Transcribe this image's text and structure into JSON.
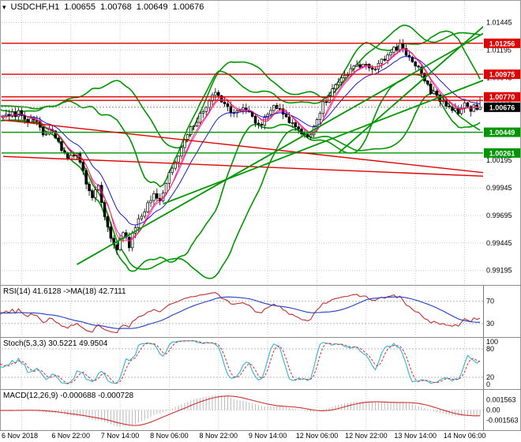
{
  "title": {
    "symbol_tf": "USDCHF,H1",
    "open": "1.00655",
    "high": "1.00768",
    "low": "1.00649",
    "close": "1.00676"
  },
  "chart_data": [
    {
      "type": "candlestick",
      "symbol": "USDCHF",
      "timeframe": "H1",
      "bar_count": 156,
      "first_label_bar": 6,
      "bars_per_label": 16,
      "y_range": [
        0.991,
        1.0162
      ],
      "y_ticks": [
        "1.01445",
        "1.01195",
        "1.00945",
        "1.00695",
        "1.00445",
        "1.00195",
        "0.99945",
        "0.99695",
        "0.99445",
        "0.99195"
      ],
      "x_labels": [
        "6 Nov 2018",
        "6 Nov 22:00",
        "7 Nov 14:00",
        "8 Nov 06:00",
        "8 Nov 22:00",
        "9 Nov 14:00",
        "12 Nov 06:00",
        "12 Nov 22:00",
        "13 Nov 14:00",
        "14 Nov 06:00"
      ],
      "last_ohlc": {
        "open": 1.00655,
        "high": 1.00768,
        "low": 1.00649,
        "close": 1.00676
      },
      "current_price": {
        "value": 1.00676,
        "label": "1.00676"
      },
      "axis_markers": [
        {
          "value": 1.01256,
          "label": "1.01256",
          "bg": "#e00000"
        },
        {
          "value": 1.00975,
          "label": "1.00975",
          "bg": "#e00000"
        },
        {
          "value": 1.0077,
          "label": "1.00770",
          "bg": "#e00000"
        },
        {
          "value": 1.00676,
          "label": "1.00676",
          "bg": "#000000"
        },
        {
          "value": 1.00449,
          "label": "1.00449",
          "bg": "#009600"
        },
        {
          "value": 1.00261,
          "label": "1.00261",
          "bg": "#009600"
        }
      ],
      "levels": [
        {
          "price": 1.01256,
          "color": "#e00000"
        },
        {
          "price": 1.00975,
          "color": "#e00000"
        },
        {
          "price": 1.0077,
          "color": "#e00000"
        },
        {
          "price": 1.00738,
          "color": "#e00000"
        },
        {
          "price": 1.00449,
          "color": "#009600"
        },
        {
          "price": 1.00261,
          "color": "#009600"
        }
      ],
      "trendlines": [
        {
          "from": [
            0,
            1.0056
          ],
          "to": [
            157,
            1.0008
          ],
          "color": "#e00000",
          "width": 1.4
        },
        {
          "from": [
            0,
            1.0023
          ],
          "to": [
            157,
            1.0005
          ],
          "color": "#e00000",
          "width": 1.4
        },
        {
          "from": [
            24,
            0.9925
          ],
          "to": [
            157,
            1.0136
          ],
          "color": "#009600",
          "width": 1.8
        },
        {
          "from": [
            52,
            0.998
          ],
          "to": [
            157,
            1.0093
          ],
          "color": "#009600",
          "width": 1.8
        },
        {
          "from": [
            109,
            1.0026
          ],
          "to": [
            157,
            1.0143
          ],
          "color": "#009600",
          "width": 1.8
        }
      ],
      "close_anchors": [
        [
          6,
          1.0062
        ],
        [
          8,
          1.0055
        ],
        [
          11,
          1.0057
        ],
        [
          14,
          1.0044
        ],
        [
          17,
          1.0048
        ],
        [
          20,
          1.0028
        ],
        [
          22,
          1.0022
        ],
        [
          25,
          1.0028
        ],
        [
          28,
          1.0
        ],
        [
          30,
          0.9988
        ],
        [
          32,
          0.9995
        ],
        [
          34,
          0.997
        ],
        [
          36,
          0.995
        ],
        [
          38,
          0.9938
        ],
        [
          40,
          0.9955
        ],
        [
          42,
          0.9942
        ],
        [
          44,
          0.996
        ],
        [
          47,
          0.9975
        ],
        [
          50,
          0.9988
        ],
        [
          52,
          0.9982
        ],
        [
          54,
          1.0
        ],
        [
          57,
          1.0018
        ],
        [
          60,
          1.0038
        ],
        [
          63,
          1.0052
        ],
        [
          66,
          1.0065
        ],
        [
          68,
          1.0075
        ],
        [
          70,
          1.008
        ],
        [
          73,
          1.007
        ],
        [
          76,
          1.0062
        ],
        [
          79,
          1.0068
        ],
        [
          82,
          1.0058
        ],
        [
          84,
          1.005
        ],
        [
          86,
          1.0058
        ],
        [
          89,
          1.0068
        ],
        [
          92,
          1.0062
        ],
        [
          95,
          1.0053
        ],
        [
          98,
          1.0043
        ],
        [
          100,
          1.004
        ],
        [
          102,
          1.005
        ],
        [
          105,
          1.007
        ],
        [
          108,
          1.0082
        ],
        [
          111,
          1.0092
        ],
        [
          114,
          1.01
        ],
        [
          116,
          1.0105
        ],
        [
          118,
          1.0108
        ],
        [
          121,
          1.01
        ],
        [
          124,
          1.011
        ],
        [
          127,
          1.0118
        ],
        [
          130,
          1.0123
        ],
        [
          132,
          1.0115
        ],
        [
          134,
          1.0108
        ],
        [
          137,
          1.01
        ],
        [
          140,
          1.0082
        ],
        [
          143,
          1.0075
        ],
        [
          146,
          1.0068
        ],
        [
          149,
          1.0062
        ],
        [
          151,
          1.007
        ],
        [
          153,
          1.0066
        ],
        [
          155,
          1.0068
        ]
      ],
      "overlays": {
        "bollinger": [
          [
            20,
            2
          ],
          [
            34,
            2
          ]
        ],
        "band_color": "#009600",
        "ma_lines": [
          {
            "type": "lwma",
            "period": 8,
            "color": "#ff00ff"
          },
          {
            "type": "ema",
            "period": 13,
            "color": "#0000cd"
          },
          {
            "type": "sma",
            "period": 5,
            "color": "#ff2020"
          }
        ]
      }
    },
    {
      "type": "line",
      "name": "RSI",
      "label": "RSI(14) 41.6128 ->MA(18) 42.7111",
      "period": 14,
      "ma_period": 18,
      "value": 41.6128,
      "ma_value": 42.7111,
      "levels": [
        70,
        30
      ],
      "display_range": [
        10,
        95
      ],
      "colors": {
        "rsi": "#c03030",
        "ma": "#2040c0"
      }
    },
    {
      "type": "line",
      "name": "Stochastic",
      "label": "Stoch(5,3,3) 30.5221 49.9504",
      "k_period": 5,
      "d_period": 3,
      "slowing": 3,
      "k_value": 30.5221,
      "d_value": 49.9504,
      "levels": [
        80,
        20
      ],
      "scale_ticks": [
        "100",
        "80",
        "20",
        "0"
      ],
      "display_range": [
        0,
        100
      ],
      "colors": {
        "k": "#30b4d8",
        "d": "#d03030"
      }
    },
    {
      "type": "line",
      "name": "MACD",
      "label": "MACD(12,26,9) -0.000688 -0.000728",
      "fast": 12,
      "slow": 26,
      "signal_period": 9,
      "value": -0.000688,
      "signal_value": -0.000728,
      "scale_ticks": [
        "0.001563",
        "0.00",
        "-0.001563"
      ],
      "colors": {
        "histogram": "#b8b8b8",
        "signal": "#d03030"
      }
    }
  ]
}
